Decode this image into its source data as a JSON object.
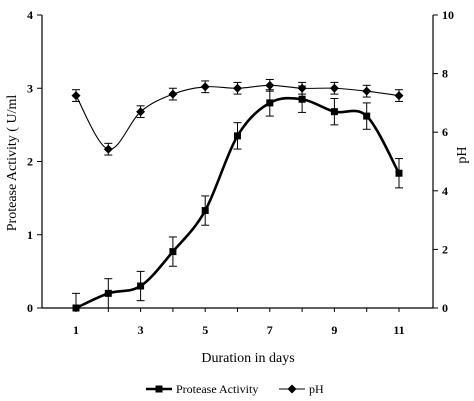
{
  "chart_data": {
    "type": "line",
    "xlabel": "Duration in days",
    "ylabel_left": "Protease Activity ( U/ml",
    "ylabel_right": "pH",
    "x_ticks": [
      1,
      3,
      5,
      7,
      9,
      11
    ],
    "x_range": [
      1,
      11
    ],
    "y_left_range": [
      0,
      4
    ],
    "y_left_ticks": [
      0,
      1,
      2,
      3,
      4
    ],
    "y_right_range": [
      0,
      10
    ],
    "y_right_ticks": [
      0,
      2,
      4,
      6,
      8,
      10
    ],
    "grid": false,
    "legend_position": "bottom",
    "series": [
      {
        "name": "Protease Activity",
        "axis": "left",
        "marker": "square",
        "line": "thick",
        "x": [
          1,
          2,
          3,
          4,
          5,
          6,
          7,
          8,
          9,
          10,
          11
        ],
        "values": [
          0.0,
          0.2,
          0.3,
          0.77,
          1.33,
          2.35,
          2.8,
          2.85,
          2.68,
          2.62,
          1.84
        ],
        "errors": [
          0.2,
          0.2,
          0.2,
          0.2,
          0.2,
          0.18,
          0.18,
          0.18,
          0.18,
          0.18,
          0.2
        ]
      },
      {
        "name": "pH",
        "axis": "right",
        "marker": "diamond",
        "line": "thin",
        "x": [
          1,
          2,
          3,
          4,
          5,
          6,
          7,
          8,
          9,
          10,
          11
        ],
        "values": [
          7.25,
          5.42,
          6.7,
          7.3,
          7.55,
          7.5,
          7.6,
          7.5,
          7.5,
          7.4,
          7.25
        ],
        "errors": [
          0.2,
          0.2,
          0.2,
          0.2,
          0.2,
          0.2,
          0.2,
          0.2,
          0.2,
          0.2,
          0.2
        ]
      }
    ]
  }
}
